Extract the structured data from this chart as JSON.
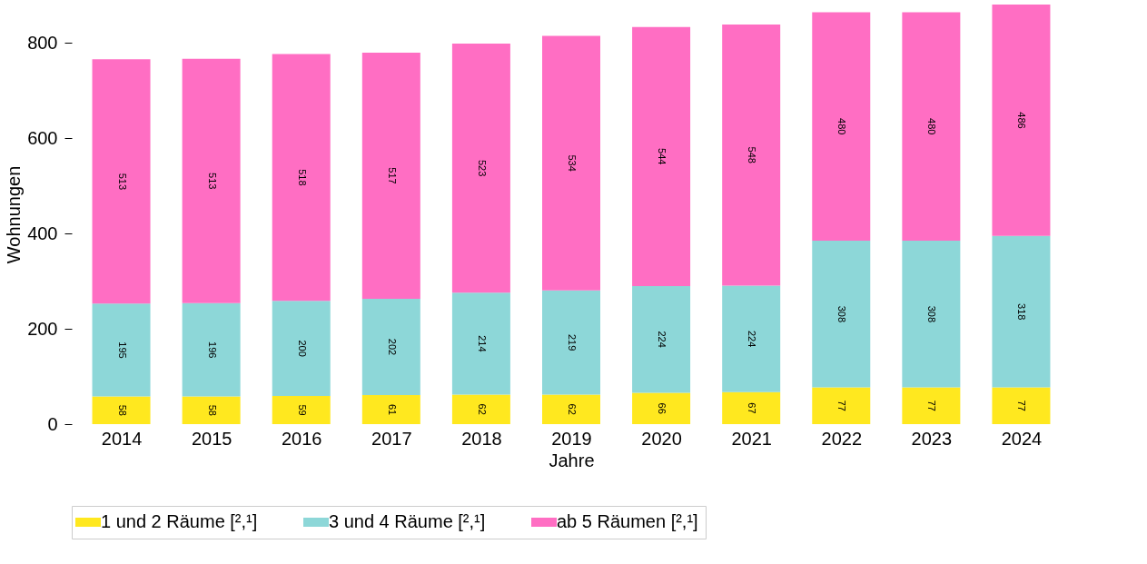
{
  "chart_data": {
    "type": "bar",
    "stacked": true,
    "xlabel": "Jahre",
    "ylabel": "Wohnungen",
    "categories": [
      "2014",
      "2015",
      "2016",
      "2017",
      "2018",
      "2019",
      "2020",
      "2021",
      "2022",
      "2023",
      "2024"
    ],
    "series": [
      {
        "name": "1 und 2 Räume [²,¹]",
        "color": "#ffe81f",
        "values": [
          58,
          58,
          59,
          61,
          62,
          62,
          66,
          67,
          77,
          77,
          77
        ]
      },
      {
        "name": "3 und 4 Räume [²,¹]",
        "color": "#8dd7d8",
        "values": [
          195,
          196,
          200,
          202,
          214,
          219,
          224,
          224,
          308,
          308,
          318
        ]
      },
      {
        "name": "ab 5 Räumen [²,¹]",
        "color": "#ff6ec3",
        "values": [
          513,
          513,
          518,
          517,
          523,
          534,
          544,
          548,
          480,
          480,
          486
        ]
      }
    ],
    "ylim": [
      0,
      881
    ],
    "yticks": [
      0,
      200,
      400,
      600,
      800
    ],
    "grid": false,
    "legend": "bottom",
    "data_labels": true
  }
}
